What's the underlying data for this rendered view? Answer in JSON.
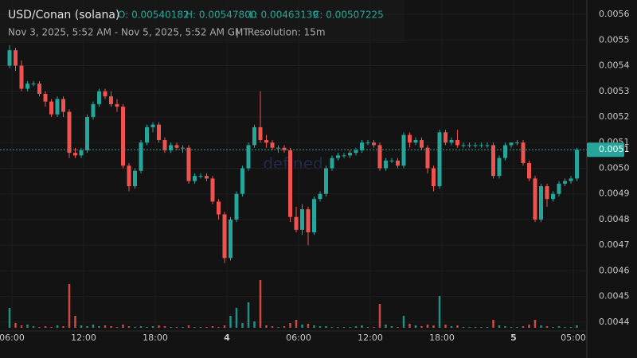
{
  "chart_data": {
    "type": "candlestick",
    "symbol": "USD/Conan (solana)",
    "ohlc_legend": [
      "O: 0.00540182",
      "H: 0.00547800",
      "L: 0.00463139",
      "C: 0.00507225"
    ],
    "subtitle": "Nov 3, 2025, 5:52 AM - Nov 5, 2025, 5:52 AM GMT",
    "separator": "|",
    "resolution": "Resolution: 15m",
    "watermark": "defined",
    "up_color": "#26a69a",
    "down_color": "#ef5350",
    "ylim": [
      0.004378,
      0.005656
    ],
    "yticks": [
      {
        "value": 0.0044,
        "label": "0.0044"
      },
      {
        "value": 0.0045,
        "label": "0.0045"
      },
      {
        "value": 0.0046,
        "label": "0.0046"
      },
      {
        "value": 0.0047,
        "label": "0.0047"
      },
      {
        "value": 0.0048,
        "label": "0.0048"
      },
      {
        "value": 0.0049,
        "label": "0.0049"
      },
      {
        "value": 0.005,
        "label": "0.0050"
      },
      {
        "value": 0.0051,
        "label": "0.0051"
      },
      {
        "value": 0.0052,
        "label": "0.0052"
      },
      {
        "value": 0.0053,
        "label": "0.0053"
      },
      {
        "value": 0.0054,
        "label": "0.0054"
      },
      {
        "value": 0.0055,
        "label": "0.0055"
      },
      {
        "value": 0.0056,
        "label": "0.0056"
      }
    ],
    "xtick_labels": [
      "06:00",
      "12:00",
      "18:00",
      "4",
      "06:00",
      "12:00",
      "18:00",
      "5",
      "05:00"
    ],
    "last_price_label": "0.0051",
    "ohlc": [
      [
        0.0054,
        0.00548,
        0.00539,
        0.00546
      ],
      [
        0.00546,
        0.00547,
        0.00538,
        0.0054
      ],
      [
        0.0054,
        0.00542,
        0.0053,
        0.00531
      ],
      [
        0.00531,
        0.00534,
        0.0053,
        0.00533
      ],
      [
        0.00533,
        0.00534,
        0.00532,
        0.00533
      ],
      [
        0.00533,
        0.00534,
        0.00528,
        0.00529
      ],
      [
        0.00529,
        0.0053,
        0.00524,
        0.00526
      ],
      [
        0.00526,
        0.00527,
        0.0052,
        0.00521
      ],
      [
        0.00521,
        0.00528,
        0.0052,
        0.00527
      ],
      [
        0.00527,
        0.00528,
        0.0052,
        0.00522
      ],
      [
        0.00522,
        0.00523,
        0.00504,
        0.00506
      ],
      [
        0.00506,
        0.00508,
        0.00504,
        0.00505
      ],
      [
        0.00505,
        0.00508,
        0.00504,
        0.00507
      ],
      [
        0.00507,
        0.00521,
        0.00506,
        0.0052
      ],
      [
        0.0052,
        0.00526,
        0.00519,
        0.00525
      ],
      [
        0.00525,
        0.00531,
        0.00524,
        0.0053
      ],
      [
        0.0053,
        0.00531,
        0.00527,
        0.00528
      ],
      [
        0.00528,
        0.0053,
        0.00524,
        0.00525
      ],
      [
        0.00525,
        0.00527,
        0.00522,
        0.00524
      ],
      [
        0.00524,
        0.00525,
        0.005,
        0.00501
      ],
      [
        0.00501,
        0.00502,
        0.00491,
        0.00493
      ],
      [
        0.00493,
        0.005,
        0.00492,
        0.00499
      ],
      [
        0.00499,
        0.00511,
        0.00498,
        0.0051
      ],
      [
        0.0051,
        0.00517,
        0.00509,
        0.00516
      ],
      [
        0.00516,
        0.00518,
        0.00514,
        0.00517
      ],
      [
        0.00517,
        0.00518,
        0.0051,
        0.00511
      ],
      [
        0.00511,
        0.00512,
        0.00506,
        0.00507
      ],
      [
        0.00507,
        0.0051,
        0.00506,
        0.00509
      ],
      [
        0.00509,
        0.0051,
        0.00507,
        0.00508
      ],
      [
        0.00508,
        0.00509,
        0.00506,
        0.00508
      ],
      [
        0.00508,
        0.00509,
        0.00494,
        0.00495
      ],
      [
        0.00495,
        0.00498,
        0.00494,
        0.00497
      ],
      [
        0.00497,
        0.00498,
        0.00496,
        0.00497
      ],
      [
        0.00497,
        0.00498,
        0.00495,
        0.00496
      ],
      [
        0.00496,
        0.00497,
        0.00486,
        0.00487
      ],
      [
        0.00487,
        0.00488,
        0.0048,
        0.00482
      ],
      [
        0.00482,
        0.00483,
        0.00463,
        0.00465
      ],
      [
        0.00465,
        0.00481,
        0.00464,
        0.0048
      ],
      [
        0.0048,
        0.00491,
        0.00479,
        0.0049
      ],
      [
        0.0049,
        0.00501,
        0.00489,
        0.005
      ],
      [
        0.005,
        0.0051,
        0.00499,
        0.00509
      ],
      [
        0.00509,
        0.00517,
        0.00508,
        0.00516
      ],
      [
        0.00516,
        0.0053,
        0.0051,
        0.00511
      ],
      [
        0.00511,
        0.00513,
        0.00508,
        0.0051
      ],
      [
        0.0051,
        0.00511,
        0.00507,
        0.00508
      ],
      [
        0.00508,
        0.00509,
        0.00506,
        0.00508
      ],
      [
        0.00508,
        0.00509,
        0.00506,
        0.00507
      ],
      [
        0.00507,
        0.00508,
        0.00479,
        0.00481
      ],
      [
        0.00481,
        0.00485,
        0.00475,
        0.00476
      ],
      [
        0.00476,
        0.00486,
        0.00474,
        0.00484
      ],
      [
        0.00484,
        0.00485,
        0.0047,
        0.00475
      ],
      [
        0.00475,
        0.00489,
        0.00474,
        0.00488
      ],
      [
        0.00488,
        0.00491,
        0.00487,
        0.0049
      ],
      [
        0.0049,
        0.00501,
        0.00489,
        0.005
      ],
      [
        0.005,
        0.00505,
        0.00499,
        0.00504
      ],
      [
        0.00504,
        0.00506,
        0.00503,
        0.00505
      ],
      [
        0.00505,
        0.00506,
        0.00504,
        0.00505
      ],
      [
        0.00505,
        0.00507,
        0.00504,
        0.00506
      ],
      [
        0.00506,
        0.00508,
        0.00505,
        0.00507
      ],
      [
        0.00507,
        0.00511,
        0.00506,
        0.0051
      ],
      [
        0.0051,
        0.00511,
        0.00509,
        0.0051
      ],
      [
        0.0051,
        0.00511,
        0.00508,
        0.00509
      ],
      [
        0.00509,
        0.0051,
        0.00499,
        0.005
      ],
      [
        0.005,
        0.00504,
        0.00499,
        0.00503
      ],
      [
        0.00503,
        0.00504,
        0.00502,
        0.00503
      ],
      [
        0.00503,
        0.00504,
        0.005,
        0.00501
      ],
      [
        0.00501,
        0.00514,
        0.005,
        0.00513
      ],
      [
        0.00513,
        0.00514,
        0.00508,
        0.0051
      ],
      [
        0.0051,
        0.00512,
        0.00509,
        0.00511
      ],
      [
        0.00511,
        0.00512,
        0.00507,
        0.00508
      ],
      [
        0.00508,
        0.00509,
        0.00498,
        0.005
      ],
      [
        0.005,
        0.00501,
        0.00491,
        0.00493
      ],
      [
        0.00493,
        0.00515,
        0.00492,
        0.00514
      ],
      [
        0.00514,
        0.00515,
        0.00509,
        0.0051
      ],
      [
        0.0051,
        0.00512,
        0.00509,
        0.00511
      ],
      [
        0.00511,
        0.00515,
        0.00508,
        0.00509
      ],
      [
        0.00509,
        0.0051,
        0.00508,
        0.00509
      ],
      [
        0.00509,
        0.0051,
        0.00508,
        0.00509
      ],
      [
        0.00509,
        0.0051,
        0.00508,
        0.00509
      ],
      [
        0.00509,
        0.0051,
        0.00508,
        0.00509
      ],
      [
        0.00509,
        0.0051,
        0.00508,
        0.00509
      ],
      [
        0.00509,
        0.0051,
        0.00496,
        0.00497
      ],
      [
        0.00497,
        0.00505,
        0.00496,
        0.00504
      ],
      [
        0.00504,
        0.0051,
        0.00503,
        0.00509
      ],
      [
        0.00509,
        0.0051,
        0.00508,
        0.0051
      ],
      [
        0.0051,
        0.00511,
        0.00509,
        0.0051
      ],
      [
        0.0051,
        0.00511,
        0.00501,
        0.00502
      ],
      [
        0.00502,
        0.00503,
        0.00495,
        0.00496
      ],
      [
        0.00496,
        0.00497,
        0.00479,
        0.0048
      ],
      [
        0.0048,
        0.00494,
        0.00479,
        0.00493
      ],
      [
        0.00493,
        0.00494,
        0.00485,
        0.00488
      ],
      [
        0.00488,
        0.00491,
        0.00487,
        0.0049
      ],
      [
        0.0049,
        0.00495,
        0.00489,
        0.00494
      ],
      [
        0.00494,
        0.00496,
        0.00493,
        0.00495
      ],
      [
        0.00495,
        0.00497,
        0.00494,
        0.00496
      ],
      [
        0.00496,
        0.00508,
        0.00495,
        0.00507225
      ]
    ],
    "volume": [
      25,
      6,
      3,
      4,
      2,
      1,
      2,
      1,
      3,
      2,
      55,
      15,
      3,
      2,
      4,
      2,
      3,
      2,
      1,
      4,
      2,
      1,
      2,
      1,
      2,
      3,
      2,
      1,
      1,
      1,
      3,
      1,
      1,
      1,
      2,
      1,
      3,
      15,
      25,
      6,
      32,
      8,
      60,
      3,
      2,
      1,
      2,
      6,
      10,
      4,
      5,
      3,
      2,
      2,
      1,
      1,
      1,
      1,
      2,
      3,
      1,
      1,
      30,
      4,
      2,
      1,
      15,
      5,
      3,
      2,
      4,
      3,
      40,
      4,
      2,
      3,
      1,
      1,
      1,
      1,
      1,
      10,
      3,
      2,
      1,
      1,
      2,
      4,
      10,
      3,
      2,
      1,
      2,
      1,
      1,
      3
    ]
  }
}
